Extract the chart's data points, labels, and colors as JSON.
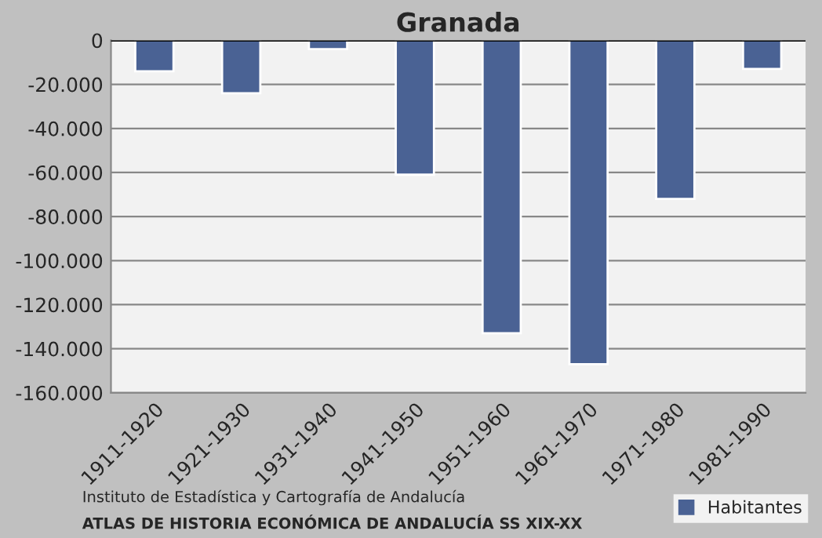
{
  "chart_data": {
    "type": "bar",
    "title": "Granada",
    "categories": [
      "1911-1920",
      "1921-1930",
      "1931-1940",
      "1941-1950",
      "1951-1960",
      "1961-1970",
      "1971-1980",
      "1981-1990"
    ],
    "series": [
      {
        "name": "Habitantes",
        "color": "#4a6294",
        "values": [
          -14000,
          -24000,
          -4000,
          -61000,
          -133000,
          -147000,
          -72000,
          -13000
        ]
      }
    ],
    "ylim": [
      -160000,
      0
    ],
    "yticks": [
      {
        "value": -160000,
        "label": "-160.000"
      },
      {
        "value": -140000,
        "label": "-140.000"
      },
      {
        "value": -120000,
        "label": "-120.000"
      },
      {
        "value": -100000,
        "label": "-100.000"
      },
      {
        "value": -80000,
        "label": "-80.000"
      },
      {
        "value": -60000,
        "label": "-60.000"
      },
      {
        "value": -40000,
        "label": "-40.000"
      },
      {
        "value": -20000,
        "label": "-20.000"
      },
      0
    ],
    "grid": "y",
    "legend": "bottom right",
    "annotations": [
      "Instituto de Estadística y Cartografía de Andalucía",
      "ATLAS DE HISTORIA ECONÓMICA DE ANDALUCÍA SS XIX-XX"
    ]
  }
}
